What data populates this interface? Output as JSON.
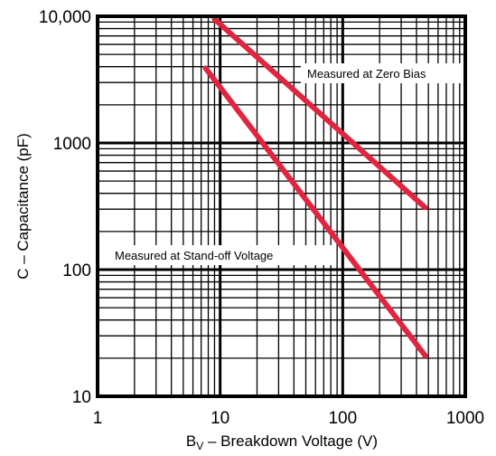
{
  "chart_data": {
    "type": "line",
    "x_scale": "log",
    "y_scale": "log",
    "xlim": [
      1,
      1000
    ],
    "ylim": [
      10,
      10000
    ],
    "xlabel": {
      "main": "B",
      "sub": "V",
      "rest": " – Breakdown Voltage (V)"
    },
    "ylabel": "C – Capacitance (pF)",
    "x_ticks": [
      {
        "value": 1,
        "label": "1"
      },
      {
        "value": 10,
        "label": "10"
      },
      {
        "value": 100,
        "label": "100"
      },
      {
        "value": 1000,
        "label": "1000"
      }
    ],
    "y_ticks": [
      {
        "value": 10,
        "label": "10"
      },
      {
        "value": 100,
        "label": "100"
      },
      {
        "value": 1000,
        "label": "1000"
      },
      {
        "value": 10000,
        "label": "10,000"
      }
    ],
    "grid": true,
    "line_color": "#e0253f",
    "series": [
      {
        "name": "Measured at Zero Bias",
        "x": [
          9,
          470
        ],
        "y": [
          9500,
          310
        ]
      },
      {
        "name": "Measured at Stand-off Voltage",
        "x": [
          7.6,
          470
        ],
        "y": [
          3900,
          21
        ]
      }
    ]
  }
}
